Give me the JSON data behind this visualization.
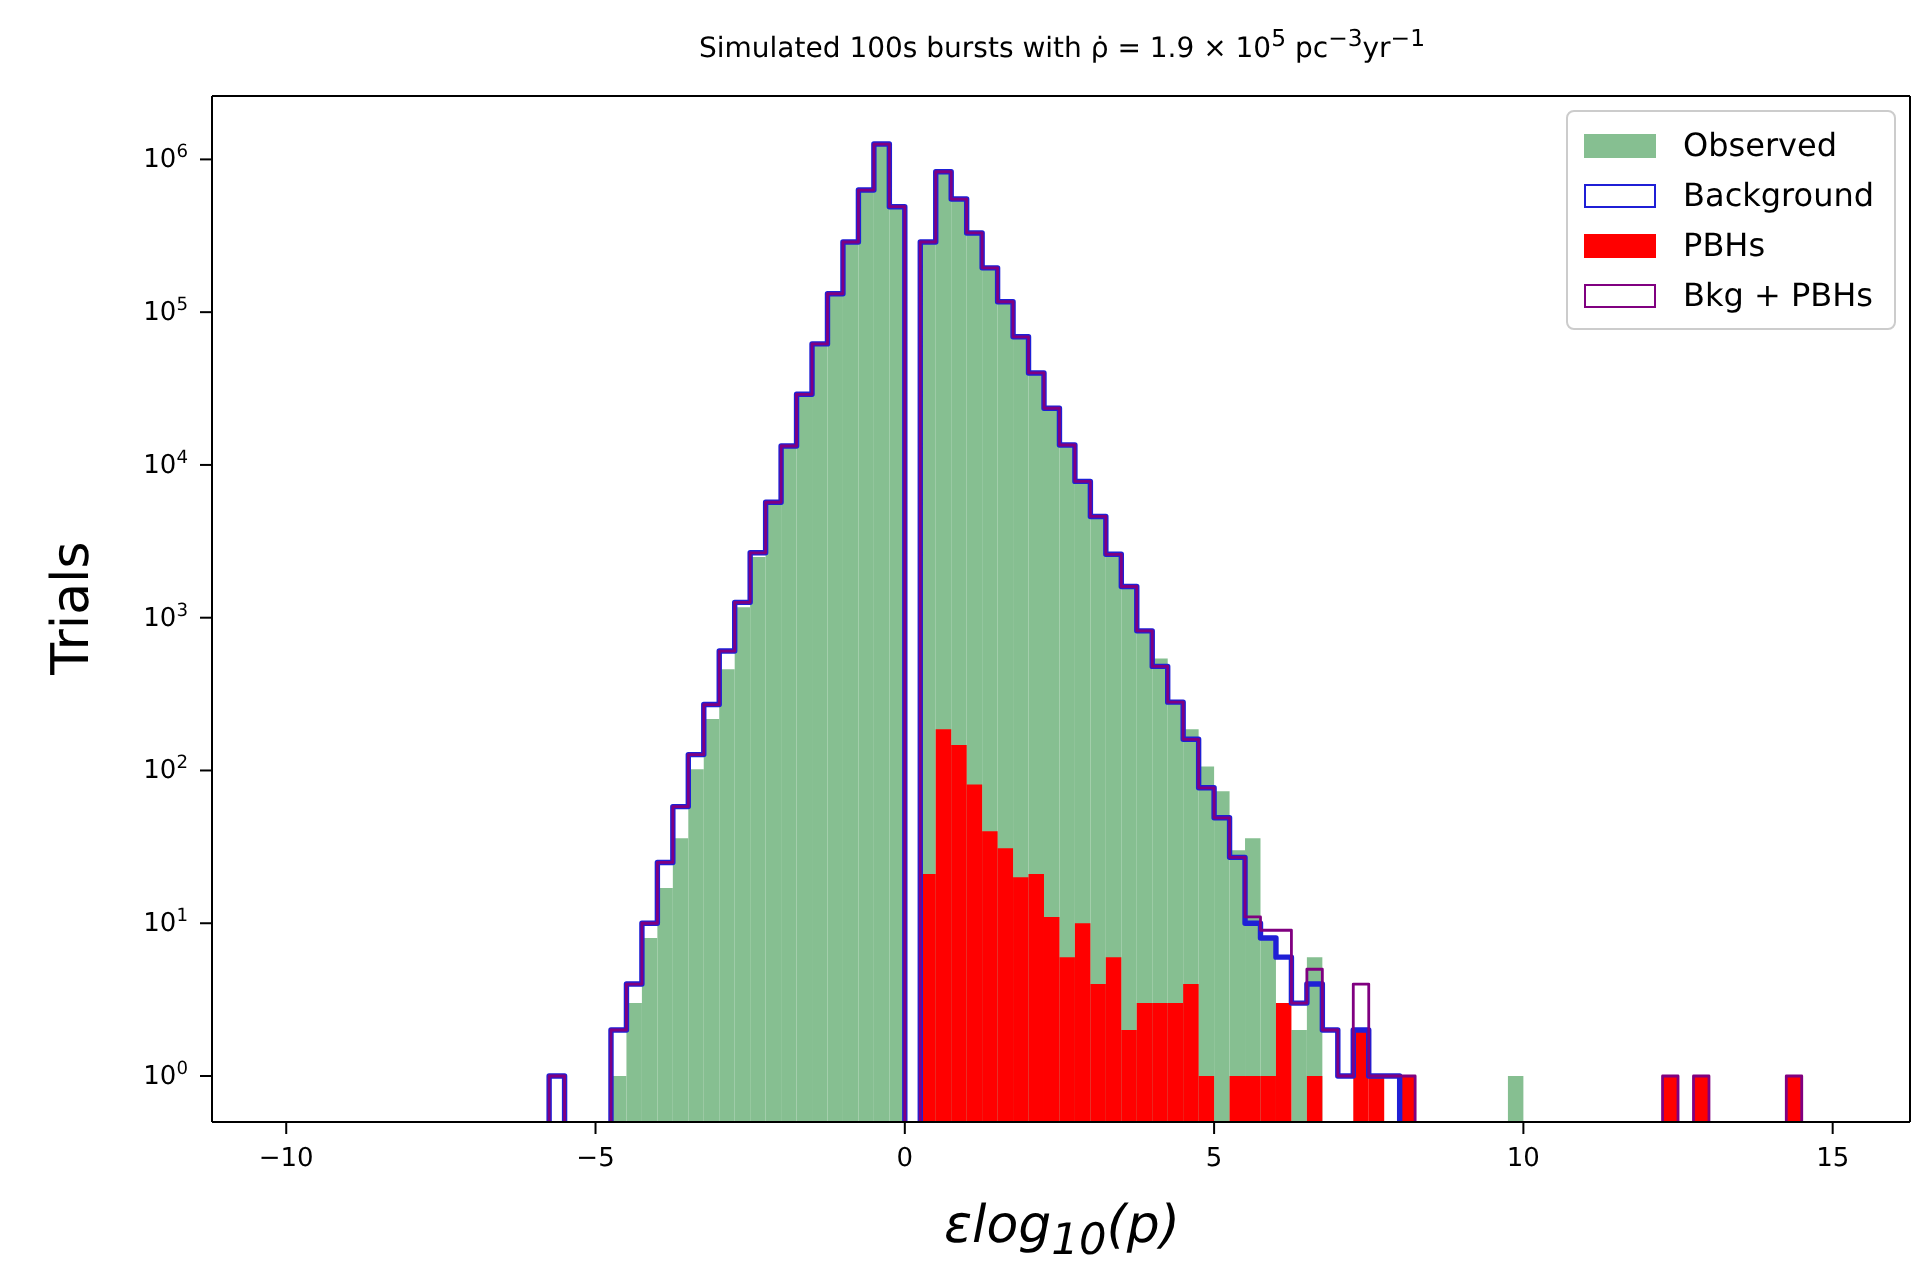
{
  "chart_data": {
    "type": "histogram",
    "title": "Simulated 100s bursts with ρ̇ = 1.9 × 10$^{5}$ pc$^{−3}$yr$^{−1}$",
    "xlabel": "εlog$_{10}$(p)",
    "ylabel": "Trials",
    "bins": [
      -5.75,
      -5.5,
      -5.25,
      -5,
      -4.75,
      -4.5,
      -4.25,
      -4,
      -3.75,
      -3.5,
      -3.25,
      -3,
      -2.75,
      -2.5,
      -2.25,
      -2,
      -1.75,
      -1.5,
      -1.25,
      -1,
      -0.75,
      -0.5,
      -0.25,
      0,
      0.25,
      0.5,
      0.75,
      1,
      1.25,
      1.5,
      1.75,
      2,
      2.25,
      2.5,
      2.75,
      3,
      3.25,
      3.5,
      3.75,
      4,
      4.25,
      4.5,
      4.75,
      5,
      5.25,
      5.5,
      5.75,
      6,
      6.25,
      6.5,
      6.75,
      7,
      7.25,
      7.5,
      7.75,
      8,
      8.25,
      8.5,
      8.75,
      9,
      9.25,
      9.5,
      9.75,
      10,
      10.25,
      10.5,
      10.75,
      11,
      11.25,
      11.5,
      11.75,
      12,
      12.25,
      12.5,
      12.75,
      13,
      13.25,
      13.5,
      13.75,
      14,
      14.25,
      14.5
    ],
    "series": [
      {
        "name": "Observed",
        "type": "histogram",
        "color": "#86bf91",
        "values": [
          null,
          null,
          null,
          null,
          1,
          3,
          8,
          17,
          36,
          102,
          217,
          460,
          1170,
          2500,
          5700,
          13300,
          29000,
          62000,
          132000,
          288000,
          630000,
          1260000,
          490000,
          null,
          288000,
          830000,
          550000,
          330000,
          195000,
          117000,
          69000,
          40000,
          23500,
          13500,
          7800,
          4600,
          2600,
          1600,
          820,
          540,
          280,
          186,
          106,
          73,
          30,
          36,
          8,
          null,
          2,
          6,
          null,
          null,
          null,
          null,
          null,
          null,
          null,
          null,
          null,
          null,
          null,
          null,
          1,
          null,
          null,
          null,
          null,
          null,
          null,
          null,
          null,
          null,
          null,
          null,
          null,
          null,
          null,
          null,
          null,
          null,
          null
        ]
      },
      {
        "name": "Background",
        "type": "step",
        "color": "#1f1fd6",
        "x": [
          -5.625,
          -5.375,
          -5.125,
          -4.875,
          -4.625,
          -4.375,
          -4.125,
          -3.875,
          -3.625,
          -3.375,
          -3.125,
          -2.875,
          -2.625,
          -2.375,
          -2.125,
          -1.875,
          -1.625,
          -1.375,
          -1.125,
          -0.875,
          -0.625,
          -0.375,
          -0.125,
          0.125,
          0.375,
          0.625,
          0.875,
          1.125,
          1.375,
          1.625,
          1.875,
          2.125,
          2.375,
          2.625,
          2.875,
          3.125,
          3.375,
          3.625,
          3.875,
          4.125,
          4.375,
          4.625,
          4.875,
          5.125,
          5.375,
          5.625,
          5.875,
          6.125,
          6.375,
          6.625,
          6.875,
          7.125,
          7.375,
          7.625,
          7.875
        ],
        "values": [
          1,
          null,
          null,
          null,
          2,
          4,
          10,
          25,
          58,
          127,
          270,
          605,
          1260,
          2660,
          5700,
          13300,
          29000,
          62000,
          132000,
          288000,
          630000,
          1260000,
          490000,
          null,
          288000,
          830000,
          550000,
          330000,
          195000,
          117000,
          69000,
          40000,
          23500,
          13500,
          7800,
          4600,
          2600,
          1600,
          820,
          480,
          280,
          160,
          77,
          49,
          27,
          10,
          8,
          6,
          3,
          4,
          2,
          1,
          2,
          1,
          1
        ]
      },
      {
        "name": "PBHs",
        "type": "histogram",
        "color": "#ff0000",
        "values": [
          null,
          null,
          null,
          null,
          null,
          null,
          null,
          null,
          null,
          null,
          null,
          null,
          null,
          null,
          null,
          null,
          null,
          null,
          null,
          null,
          null,
          null,
          null,
          null,
          21,
          186,
          147,
          81,
          40,
          31,
          20,
          21,
          11,
          6,
          10,
          4,
          6,
          2,
          3,
          3,
          3,
          4,
          1,
          null,
          1,
          1,
          1,
          3,
          null,
          1,
          null,
          null,
          2,
          1,
          null,
          1,
          null,
          null,
          null,
          null,
          null,
          null,
          null,
          null,
          null,
          null,
          null,
          null,
          null,
          null,
          null,
          null,
          1,
          null,
          1,
          null,
          null,
          null,
          null,
          null,
          1
        ]
      },
      {
        "name": "Bkg + PBHs",
        "type": "step",
        "color": "#800080",
        "x": [
          -5.625,
          -5.375,
          -5.125,
          -4.875,
          -4.625,
          -4.375,
          -4.125,
          -3.875,
          -3.625,
          -3.375,
          -3.125,
          -2.875,
          -2.625,
          -2.375,
          -2.125,
          -1.875,
          -1.625,
          -1.375,
          -1.125,
          -0.875,
          -0.625,
          -0.375,
          -0.125,
          0.125,
          0.375,
          0.625,
          0.875,
          1.125,
          1.375,
          1.625,
          1.875,
          2.125,
          2.375,
          2.625,
          2.875,
          3.125,
          3.375,
          3.625,
          3.875,
          4.125,
          4.375,
          4.625,
          4.875,
          5.125,
          5.375,
          5.625,
          5.875,
          6.125,
          6.375,
          6.625,
          6.875,
          7.125,
          7.375,
          7.625,
          7.875,
          8.125,
          8.375,
          8.625,
          8.875,
          9.125,
          9.375,
          9.625,
          9.875,
          10.125,
          10.375,
          10.625,
          10.875,
          11.125,
          11.375,
          11.625,
          11.875,
          12.125,
          12.375,
          12.625,
          12.875,
          13.125,
          13.375,
          13.625,
          13.875,
          14.125,
          14.375
        ],
        "values": [
          1,
          null,
          null,
          null,
          2,
          4,
          10,
          25,
          58,
          127,
          270,
          605,
          1260,
          2660,
          5700,
          13300,
          29000,
          62000,
          132000,
          288000,
          630000,
          1260000,
          490000,
          null,
          288000,
          830000,
          550000,
          330000,
          195000,
          117000,
          69000,
          40000,
          23500,
          13500,
          7800,
          4600,
          2600,
          1600,
          820,
          480,
          280,
          160,
          77,
          49,
          27,
          11,
          9,
          9,
          3,
          5,
          2,
          1,
          4,
          1,
          1,
          1,
          null,
          null,
          null,
          null,
          null,
          null,
          null,
          null,
          null,
          null,
          null,
          null,
          null,
          null,
          null,
          null,
          1,
          null,
          1,
          null,
          null,
          null,
          null,
          null,
          1
        ]
      }
    ],
    "xlim": [
      -11.2,
      16.25
    ],
    "xticks": [
      {
        "value": -10,
        "label": "−10"
      },
      {
        "value": -5,
        "label": "−5"
      },
      0,
      5,
      10,
      15
    ],
    "log": "y",
    "ylim": [
      0.5,
      2600000
    ],
    "yticks": [
      {
        "value": 1,
        "label": "10$^{0}$"
      },
      {
        "value": 10,
        "label": "10$^{1}$"
      },
      {
        "value": 100,
        "label": "10$^{2}$"
      },
      {
        "value": 1000,
        "label": "10$^{3}$"
      },
      {
        "value": 10000,
        "label": "10$^{4}$"
      },
      {
        "value": 100000,
        "label": "10$^{5}$"
      },
      {
        "value": 1000000,
        "label": "10$^{6}$"
      }
    ],
    "legend": "top right",
    "grid": false
  }
}
